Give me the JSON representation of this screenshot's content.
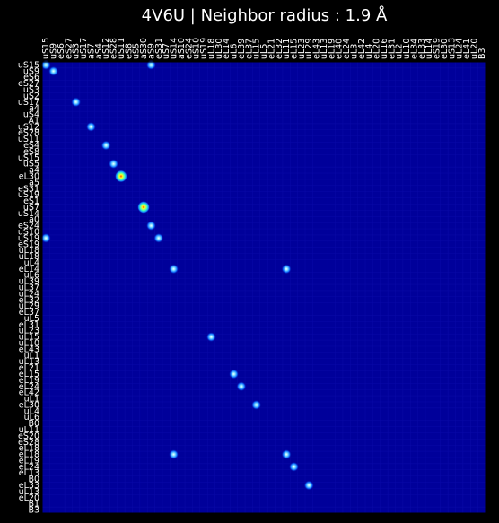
{
  "chart_data": {
    "type": "heatmap",
    "title": "4V6U | Neighbor radius : 1.9 Å",
    "x_labels": [
      "uS15",
      "uS9",
      "eS6",
      "eS27",
      "uS3",
      "uS17",
      "aS7",
      "aS4",
      "uS12",
      "eS28",
      "uS11",
      "eS8",
      "uS5",
      "aS30",
      "aS9",
      "eS31",
      "uS7",
      "uS14",
      "aS10",
      "eS24",
      "uS10",
      "uS19",
      "uL18",
      "uL30",
      "eL14",
      "uL6",
      "eL39",
      "eL37",
      "uL15",
      "uL5",
      "eL21",
      "eL32",
      "uL11",
      "eL15",
      "uL23",
      "uL29",
      "eL43",
      "uL13",
      "eL19",
      "eL40",
      "eL24",
      "uL3",
      "eL42",
      "uL4",
      "eL20",
      "uL16",
      "eL31",
      "uL2",
      "uL10",
      "eL34",
      "eL33",
      "uL14",
      "eS19",
      "eL30",
      "uS13",
      "uL24",
      "eL41",
      "uL20",
      "B3"
    ],
    "y_labels": [
      "uS15",
      "uS9",
      "eS6",
      "eS27",
      "uS3",
      "uS2",
      "uS17",
      "a4",
      "uS4",
      "A1",
      "uS12",
      "eS28",
      "uS11",
      "eS4",
      "eS8",
      "uS15",
      "uS5",
      "a4",
      "eL30",
      "a5",
      "eS31",
      "uS19",
      "eS1",
      "uS7",
      "uS14",
      "a0",
      "eS24",
      "uS10",
      "uS19",
      "eS19",
      "uL18",
      "uL18",
      "uL4",
      "eL14",
      "uL6",
      "uL39",
      "uL37",
      "uL24",
      "eL32",
      "uL29",
      "eL37",
      "uL5",
      "eL31",
      "uL23",
      "uL15",
      "uL10",
      "eL43",
      "uL1",
      "uL13",
      "eL21",
      "eL15",
      "eL19",
      "eL24",
      "eL42",
      "uL1",
      "eL30",
      "uL4",
      "uL6",
      "B0",
      "uL11",
      "eS20",
      "eS28",
      "eL18",
      "eL18",
      "eL19",
      "eL24",
      "eL13",
      "B0",
      "eL33",
      "uL13",
      "eL20",
      "B1",
      "B3"
    ],
    "background_color": "#00009a",
    "colormap": "jet",
    "cells": [
      {
        "row": 0,
        "col": 0,
        "value": 0.35
      },
      {
        "row": 1,
        "col": 1,
        "value": 0.35
      },
      {
        "row": 0,
        "col": 14,
        "value": 0.35
      },
      {
        "row": 6,
        "col": 4,
        "value": 0.35
      },
      {
        "row": 10,
        "col": 6,
        "value": 0.35
      },
      {
        "row": 13,
        "col": 8,
        "value": 0.35
      },
      {
        "row": 16,
        "col": 9,
        "value": 0.35
      },
      {
        "row": 18,
        "col": 10,
        "value": 0.65
      },
      {
        "row": 23,
        "col": 13,
        "value": 0.7
      },
      {
        "row": 26,
        "col": 14,
        "value": 0.35
      },
      {
        "row": 28,
        "col": 15,
        "value": 0.35
      },
      {
        "row": 28,
        "col": 0,
        "value": 0.35
      },
      {
        "row": 33,
        "col": 17,
        "value": 0.35
      },
      {
        "row": 33,
        "col": 32,
        "value": 0.35
      },
      {
        "row": 44,
        "col": 22,
        "value": 0.35
      },
      {
        "row": 50,
        "col": 25,
        "value": 0.35
      },
      {
        "row": 52,
        "col": 26,
        "value": 0.35
      },
      {
        "row": 55,
        "col": 28,
        "value": 0.35
      },
      {
        "row": 63,
        "col": 17,
        "value": 0.35
      },
      {
        "row": 63,
        "col": 32,
        "value": 0.35
      },
      {
        "row": 65,
        "col": 33,
        "value": 0.35
      },
      {
        "row": 68,
        "col": 35,
        "value": 0.35
      }
    ]
  }
}
